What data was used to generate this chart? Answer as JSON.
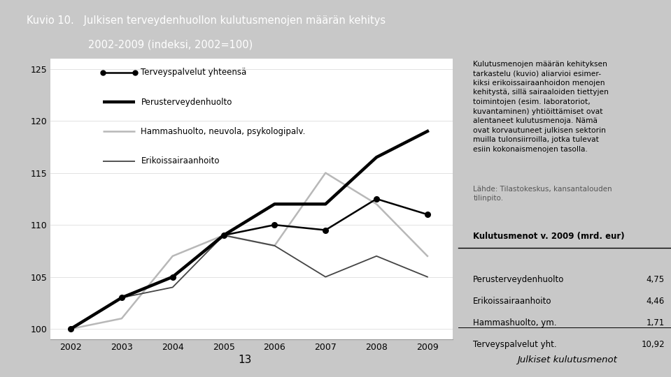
{
  "title_line1": "Kuvio 10.   Julkisen terveydenhuollon kulutusmenojen määrän kehitys",
  "title_line2": "                   2002-2009 (indeksi, 2002=100)",
  "years": [
    2002,
    2003,
    2004,
    2005,
    2006,
    2007,
    2008,
    2009
  ],
  "terveyspalvelut": [
    100,
    103.0,
    105.0,
    109.0,
    110.0,
    109.5,
    112.5,
    111.0
  ],
  "perusterveydenhuolto": [
    100,
    103.0,
    105.0,
    109.0,
    112.0,
    112.0,
    116.5,
    119.0
  ],
  "hammashuolto": [
    100,
    101.0,
    107.0,
    109.0,
    108.0,
    115.0,
    112.0,
    107.0
  ],
  "erikoissairaanhoito": [
    100,
    103.0,
    104.0,
    109.0,
    108.0,
    105.0,
    107.0,
    105.0
  ],
  "ylim": [
    99,
    126
  ],
  "yticks": [
    100,
    105,
    110,
    115,
    120,
    125
  ],
  "right_text": "Kulutusmenojen määrän kehityksen\ntarkastelu (kuvio) aliarvioi esimer-\nkiksi erikoissairaanhoidon menojen\nkehitystä, sillä sairaaloiden tiettyjen\ntoimintojen (esim. laboratoriot,\nkuvantaminen) yhtiöittämiset ovat\nalentaneet kulutusmenoja. Nämä\novat korvautuneet julkisen sektorin\nmuilla tulonsiirroilla, jotka tulevat\nesiin kokonaismenojen tasolla.",
  "right_source": "Lähde: Tilastokeskus, kansantalouden\ntilinpito.",
  "table_title": "Kulutusmenot v. 2009 (mrd. eur)",
  "table_rows": [
    [
      "Perusterveydenhuolto",
      "4,75"
    ],
    [
      "Erikoissairaanhoito",
      "4,46"
    ],
    [
      "Hammashuolto, ym.",
      "1,71"
    ],
    [
      "Terveyspalvelut yht.",
      "10,92"
    ]
  ],
  "bottom_left": "13",
  "bottom_right": "Julkiset kulutusmenot",
  "header_color": "#a8a8a8",
  "chart_bg": "#ffffff",
  "right_bg": "#e0e0e0",
  "bottom_bg": "#d0d0d0",
  "fig_bg": "#c8c8c8"
}
